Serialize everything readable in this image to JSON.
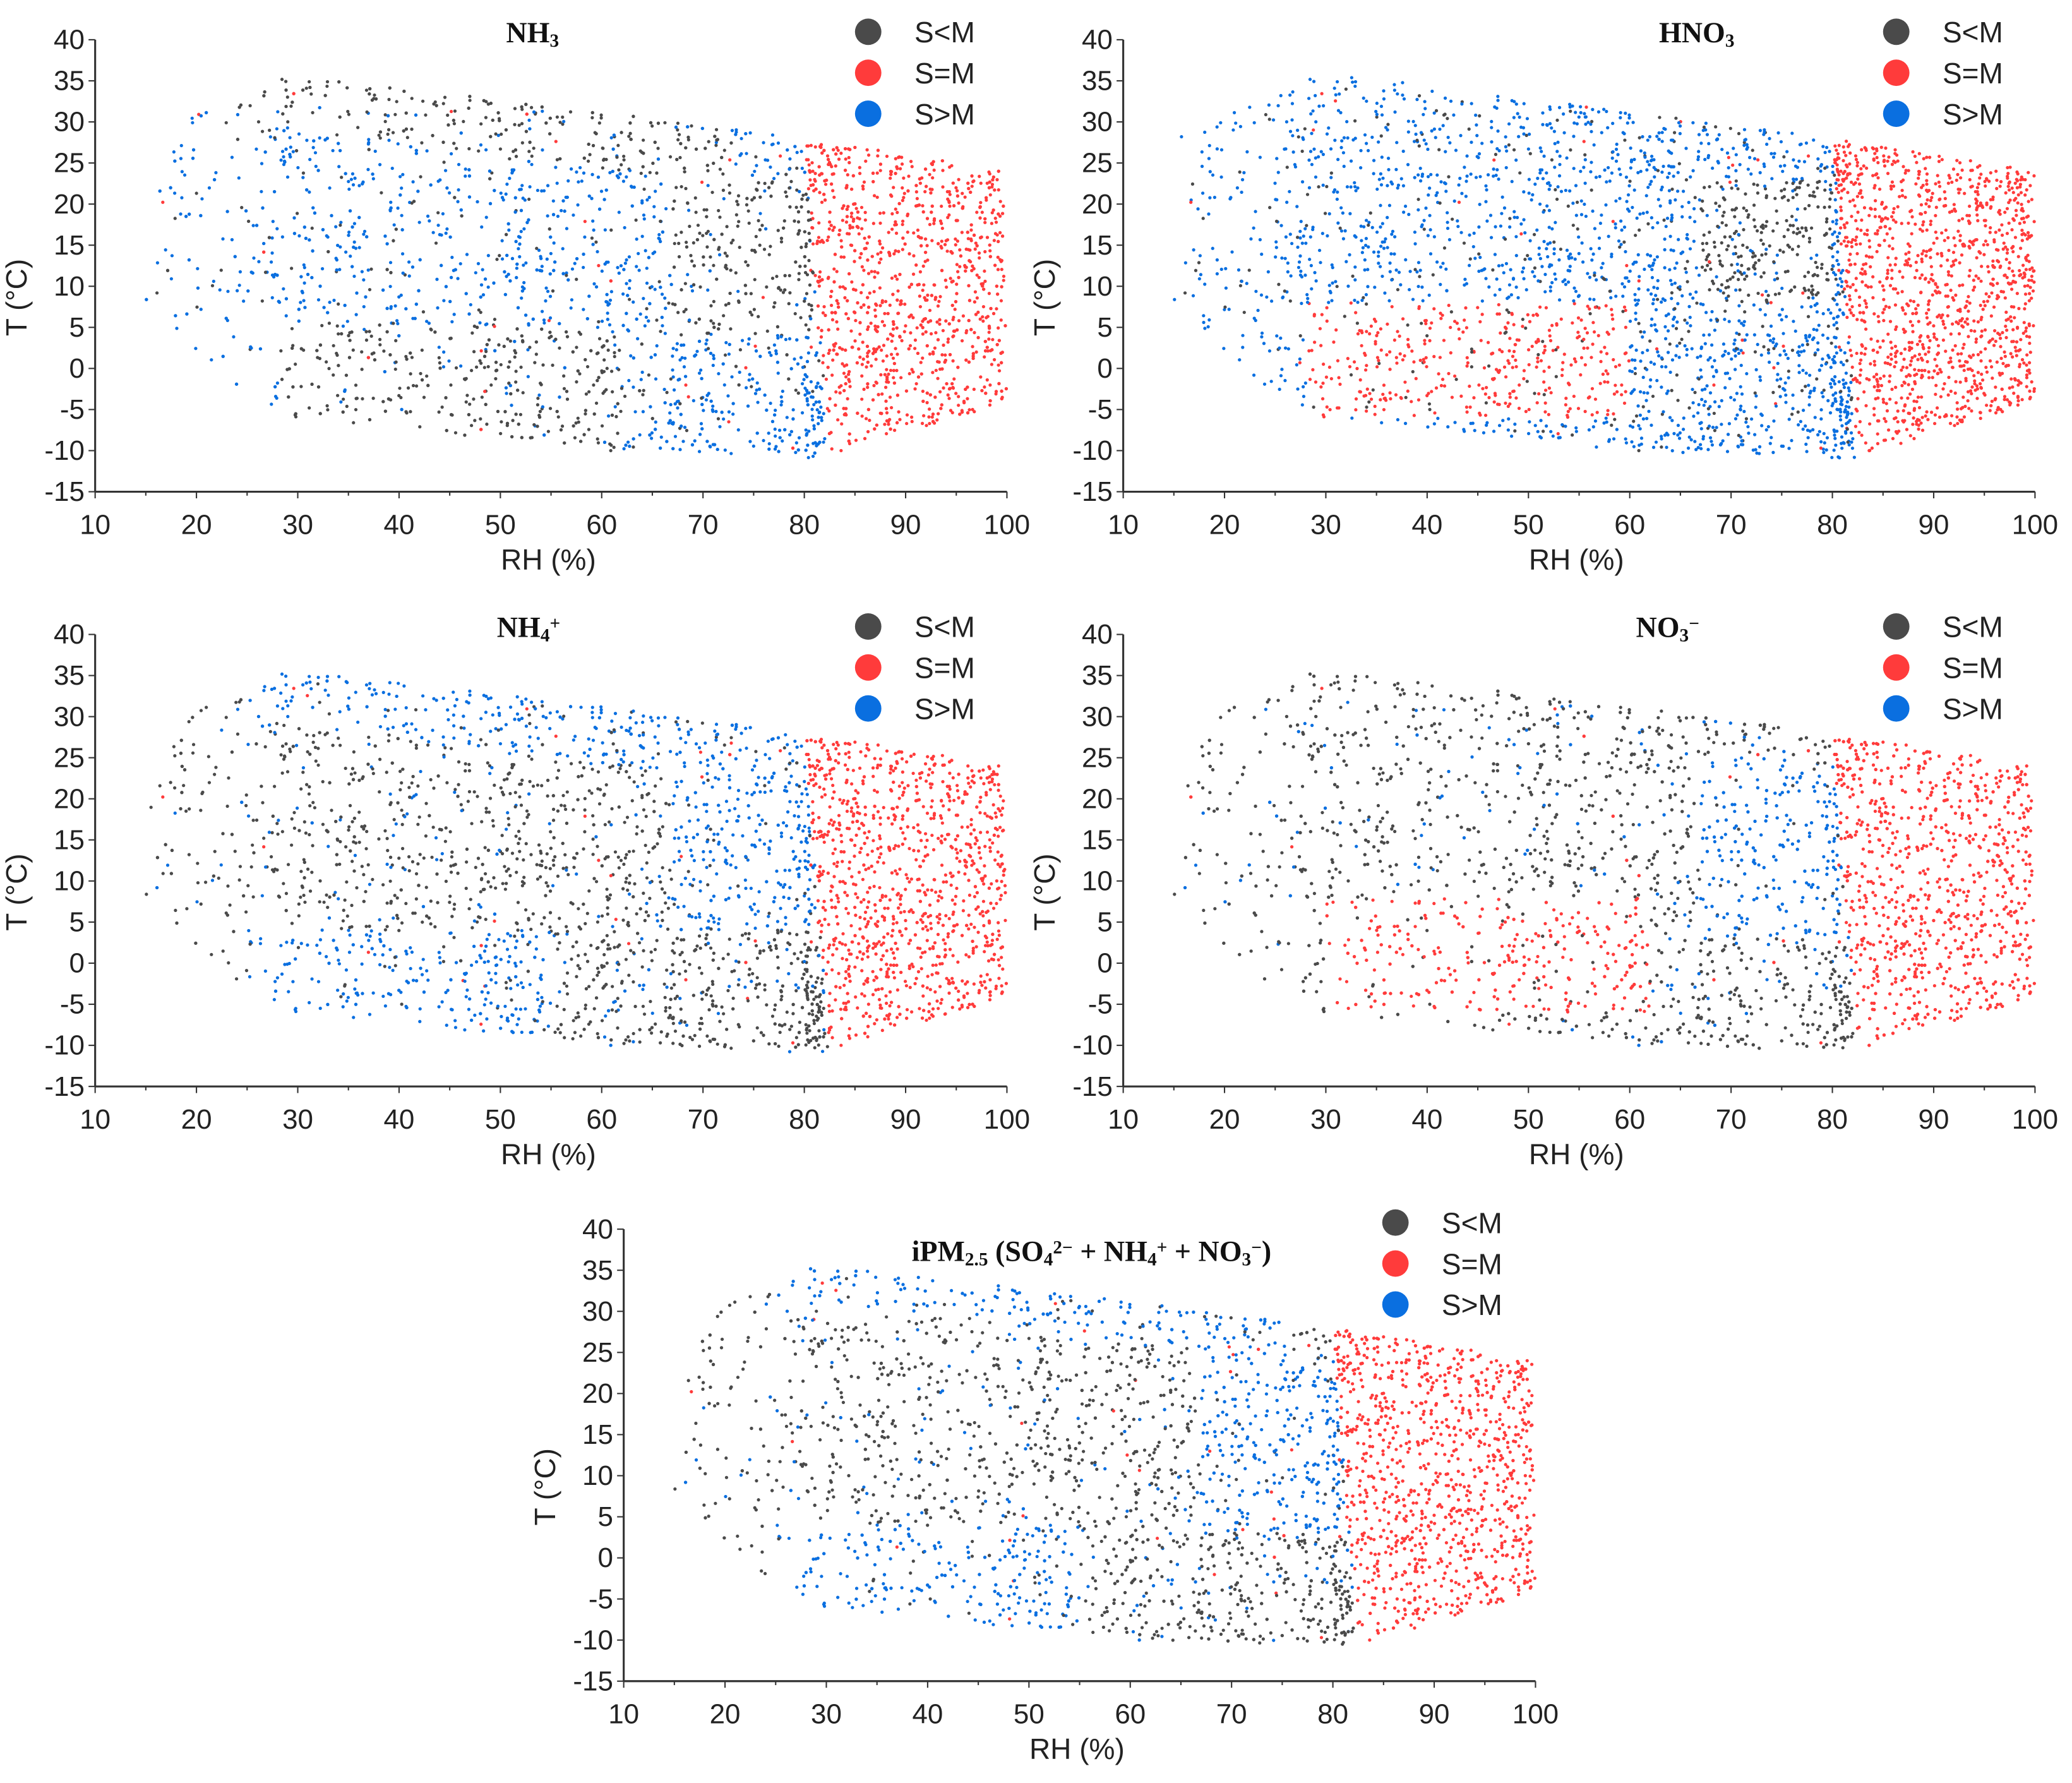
{
  "legend": [
    {
      "label": "S<M",
      "color": "#4a4a4a"
    },
    {
      "label": "S=M",
      "color": "#ff3b3b"
    },
    {
      "label": "S>M",
      "color": "#0a6fe0"
    }
  ],
  "chart_data": [
    {
      "type": "scatter",
      "title_parts": [
        {
          "t": "NH"
        },
        {
          "t": "3",
          "s": "sub"
        }
      ],
      "xlabel": "RH (%)",
      "ylabel": "T (°C)",
      "xlim": [
        10,
        100
      ],
      "ylim": [
        -15,
        40
      ],
      "xticks": [
        "10",
        "20",
        "30",
        "40",
        "50",
        "60",
        "70",
        "80",
        "90",
        "100"
      ],
      "yticks": [
        "40",
        "35",
        "30",
        "25",
        "20",
        "15",
        "10",
        "5",
        "0",
        "-5",
        "-10",
        "-15"
      ],
      "default_class": "S>M",
      "regions": [
        {
          "band": "top",
          "depth": 7,
          "rh": [
            22,
            72
          ],
          "class": "S<M"
        },
        {
          "rh": [
            28,
            62
          ],
          "t": [
            -10,
            5
          ],
          "class": "S<M"
        },
        {
          "rh": [
            67,
            82
          ],
          "t": [
            4,
            23
          ],
          "class": "S<M"
        }
      ]
    },
    {
      "type": "scatter",
      "title_parts": [
        {
          "t": "HNO"
        },
        {
          "t": "3",
          "s": "sub"
        }
      ],
      "xlabel": "RH (%)",
      "ylabel": "T (°C)",
      "xlim": [
        10,
        100
      ],
      "ylim": [
        -15,
        40
      ],
      "xticks": [
        "10",
        "20",
        "30",
        "40",
        "50",
        "60",
        "70",
        "80",
        "90",
        "100"
      ],
      "yticks": [
        "40",
        "35",
        "30",
        "25",
        "20",
        "15",
        "10",
        "5",
        "0",
        "-5",
        "-10",
        "-15"
      ],
      "default_class": "S>M",
      "regions": [
        {
          "rh": [
            28,
            60
          ],
          "t": [
            -6,
            8
          ],
          "class": "S=M"
        },
        {
          "rh": [
            67,
            80
          ],
          "t": [
            8,
            23
          ],
          "class": "S<M"
        }
      ]
    },
    {
      "type": "scatter",
      "title_parts": [
        {
          "t": "NH"
        },
        {
          "t": "4",
          "s": "sub"
        },
        {
          "t": "+",
          "s": "sup"
        }
      ],
      "xlabel": "RH (%)",
      "ylabel": "T (°C)",
      "xlim": [
        10,
        100
      ],
      "ylim": [
        -15,
        40
      ],
      "xticks": [
        "10",
        "20",
        "30",
        "40",
        "50",
        "60",
        "70",
        "80",
        "90",
        "100"
      ],
      "yticks": [
        "40",
        "35",
        "30",
        "25",
        "20",
        "15",
        "10",
        "5",
        "0",
        "-5",
        "-10",
        "-15"
      ],
      "default_class": "S<M",
      "regions": [
        {
          "band": "top",
          "depth": 7,
          "rh": [
            25,
            80
          ],
          "class": "S>M"
        },
        {
          "rh": [
            25,
            55
          ],
          "t": [
            -10,
            4
          ],
          "class": "S>M"
        },
        {
          "rh": [
            67,
            82
          ],
          "t": [
            4,
            25
          ],
          "class": "S>M"
        }
      ]
    },
    {
      "type": "scatter",
      "title_parts": [
        {
          "t": "NO"
        },
        {
          "t": "3",
          "s": "sub"
        },
        {
          "t": "−",
          "s": "sup"
        }
      ],
      "xlabel": "RH (%)",
      "ylabel": "T (°C)",
      "xlim": [
        10,
        100
      ],
      "ylim": [
        -15,
        40
      ],
      "xticks": [
        "10",
        "20",
        "30",
        "40",
        "50",
        "60",
        "70",
        "80",
        "90",
        "100"
      ],
      "yticks": [
        "40",
        "35",
        "30",
        "25",
        "20",
        "15",
        "10",
        "5",
        "0",
        "-5",
        "-10",
        "-15"
      ],
      "default_class": "S<M",
      "regions": [
        {
          "rh": [
            30,
            62
          ],
          "t": [
            -6,
            8
          ],
          "class": "S=M"
        },
        {
          "rh": [
            67,
            82
          ],
          "t": [
            3,
            25
          ],
          "class": "S>M"
        }
      ]
    },
    {
      "type": "scatter",
      "title_parts": [
        {
          "t": "iPM"
        },
        {
          "t": "2.5",
          "s": "sub"
        },
        {
          "t": " (SO"
        },
        {
          "t": "4",
          "s": "sub"
        },
        {
          "t": "2−",
          "s": "sup"
        },
        {
          "t": " + NH"
        },
        {
          "t": "4",
          "s": "sub"
        },
        {
          "t": "+",
          "s": "sup"
        },
        {
          "t": " + NO"
        },
        {
          "t": "3",
          "s": "sub"
        },
        {
          "t": "−",
          "s": "sup"
        },
        {
          "t": ")"
        }
      ],
      "xlabel": "RH (%)",
      "ylabel": "T (°C)",
      "xlim": [
        10,
        100
      ],
      "ylim": [
        -15,
        40
      ],
      "xticks": [
        "10",
        "20",
        "30",
        "40",
        "50",
        "60",
        "70",
        "80",
        "90",
        "100"
      ],
      "yticks": [
        "40",
        "35",
        "30",
        "25",
        "20",
        "15",
        "10",
        "5",
        "0",
        "-5",
        "-10",
        "-15"
      ],
      "default_class": "S<M",
      "regions": [
        {
          "band": "top",
          "depth": 5,
          "rh": [
            25,
            75
          ],
          "class": "S>M"
        },
        {
          "rh": [
            25,
            55
          ],
          "t": [
            -10,
            4
          ],
          "class": "S>M"
        },
        {
          "rh": [
            67,
            82
          ],
          "t": [
            3,
            25
          ],
          "class": "S>M"
        }
      ]
    }
  ]
}
